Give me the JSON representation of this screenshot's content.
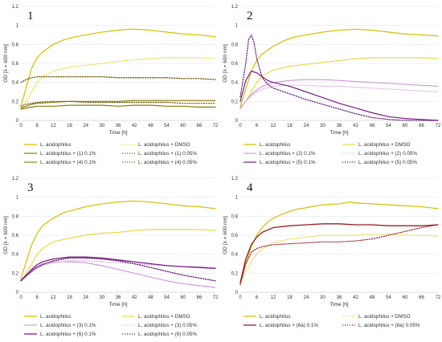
{
  "colors": {
    "gold": "#d8c20b",
    "gold_light": "#e8d94a",
    "olive": "#8a7a05",
    "olive_dark": "#6f5a08",
    "purple": "#7a1c86",
    "purple_dark": "#5b1670",
    "lilac": "#c989d6",
    "lilac_light": "#dcb0e3",
    "crimson": "#9b1c24",
    "pink_light": "#e0aeb4",
    "grid": "#e6e6e6",
    "axis": "#bbbbbb"
  },
  "chart_data": [
    {
      "type": "line",
      "panel_label": "1",
      "xlabel": "Time [h]",
      "ylabel": "OD [λ = 600 nm]",
      "xlim": [
        0,
        72
      ],
      "ylim": [
        0,
        1.2
      ],
      "xticks": [
        "0",
        "6",
        "12",
        "18",
        "24",
        "30",
        "36",
        "42",
        "48",
        "54",
        "60",
        "66",
        "72"
      ],
      "yticks": [
        "0",
        "0.2",
        "0.4",
        "0.6",
        "0.8",
        "1",
        "1.2"
      ],
      "grid": "horizontal",
      "legend_position": "bottom",
      "series": [
        {
          "name": "L. acidophilus",
          "color": "gold",
          "style": "solid",
          "width": 1.3,
          "x": [
            0,
            2,
            4,
            6,
            8,
            10,
            12,
            16,
            20,
            24,
            30,
            36,
            40,
            42,
            48,
            54,
            60,
            66,
            72
          ],
          "y": [
            0.15,
            0.35,
            0.55,
            0.66,
            0.72,
            0.76,
            0.8,
            0.85,
            0.88,
            0.9,
            0.93,
            0.95,
            0.96,
            0.96,
            0.95,
            0.93,
            0.91,
            0.9,
            0.88
          ]
        },
        {
          "name": "L. acidophilus + DMSO",
          "color": "gold_light",
          "style": "dotted",
          "width": 1.2,
          "x": [
            0,
            2,
            4,
            6,
            8,
            12,
            18,
            24,
            30,
            36,
            42,
            48,
            54,
            60,
            66,
            72
          ],
          "y": [
            0.12,
            0.2,
            0.3,
            0.4,
            0.46,
            0.52,
            0.56,
            0.58,
            0.6,
            0.62,
            0.64,
            0.65,
            0.66,
            0.66,
            0.66,
            0.65
          ]
        },
        {
          "name": "L. acidophilus + (1) 0.1%",
          "color": "olive",
          "style": "solid",
          "width": 1.2,
          "x": [
            0,
            2,
            4,
            6,
            12,
            18,
            24,
            30,
            36,
            42,
            48,
            54,
            60,
            66,
            72
          ],
          "y": [
            0.12,
            0.13,
            0.14,
            0.15,
            0.15,
            0.16,
            0.16,
            0.16,
            0.15,
            0.16,
            0.16,
            0.15,
            0.15,
            0.14,
            0.14
          ]
        },
        {
          "name": "L. acidophilus + (1) 0.05%",
          "color": "olive_dark",
          "style": "dotted",
          "width": 1.3,
          "x": [
            0,
            2,
            4,
            6,
            12,
            18,
            24,
            30,
            36,
            42,
            48,
            54,
            60,
            66,
            72
          ],
          "y": [
            0.4,
            0.43,
            0.45,
            0.46,
            0.46,
            0.46,
            0.46,
            0.46,
            0.45,
            0.45,
            0.45,
            0.45,
            0.44,
            0.44,
            0.43
          ]
        },
        {
          "name": "L. acidophilus + (4) 0.1%",
          "color": "olive",
          "style": "solid",
          "width": 1.1,
          "x": [
            0,
            2,
            4,
            6,
            12,
            18,
            24,
            30,
            36,
            42,
            48,
            54,
            60,
            66,
            72
          ],
          "y": [
            0.13,
            0.15,
            0.17,
            0.18,
            0.19,
            0.2,
            0.2,
            0.2,
            0.2,
            0.21,
            0.21,
            0.21,
            0.21,
            0.21,
            0.21
          ]
        },
        {
          "name": "L. acidophilus + (4) 0.05%",
          "color": "olive_dark",
          "style": "dotted",
          "width": 1.2,
          "x": [
            0,
            2,
            4,
            6,
            12,
            18,
            24,
            30,
            36,
            42,
            48,
            54,
            60,
            66,
            72
          ],
          "y": [
            0.15,
            0.17,
            0.18,
            0.19,
            0.2,
            0.2,
            0.19,
            0.19,
            0.19,
            0.19,
            0.19,
            0.19,
            0.18,
            0.18,
            0.18
          ]
        }
      ]
    },
    {
      "type": "line",
      "panel_label": "2",
      "xlabel": "Time [h]",
      "ylabel": "OD [λ = 600 nm]",
      "xlim": [
        0,
        72
      ],
      "ylim": [
        0,
        1.2
      ],
      "xticks": [
        "0",
        "6",
        "12",
        "18",
        "24",
        "30",
        "36",
        "42",
        "48",
        "54",
        "60",
        "66",
        "72"
      ],
      "yticks": [
        "0",
        "0.2",
        "0.4",
        "0.6",
        "0.8",
        "1",
        "1.2"
      ],
      "grid": "horizontal",
      "legend_position": "bottom",
      "series": [
        {
          "name": "L. acidophilus",
          "color": "gold",
          "style": "solid",
          "width": 1.3,
          "x": [
            0,
            2,
            4,
            6,
            8,
            10,
            12,
            16,
            20,
            24,
            30,
            36,
            42,
            48,
            54,
            60,
            66,
            72
          ],
          "y": [
            0.15,
            0.33,
            0.52,
            0.63,
            0.7,
            0.74,
            0.78,
            0.84,
            0.88,
            0.9,
            0.93,
            0.95,
            0.96,
            0.95,
            0.93,
            0.91,
            0.9,
            0.89
          ]
        },
        {
          "name": "L. acidophilus + DMSO",
          "color": "gold_light",
          "style": "solid",
          "width": 1.2,
          "x": [
            0,
            2,
            4,
            6,
            8,
            12,
            18,
            24,
            30,
            36,
            42,
            48,
            54,
            60,
            66,
            72
          ],
          "y": [
            0.12,
            0.2,
            0.3,
            0.4,
            0.47,
            0.53,
            0.57,
            0.59,
            0.61,
            0.63,
            0.65,
            0.66,
            0.66,
            0.66,
            0.66,
            0.65
          ]
        },
        {
          "name": "L. acidophilus + (2) 0.1%",
          "color": "lilac",
          "style": "solid",
          "width": 1.0,
          "x": [
            0,
            2,
            4,
            6,
            8,
            12,
            18,
            24,
            30,
            36,
            42,
            48,
            54,
            60,
            66,
            72
          ],
          "y": [
            0.13,
            0.2,
            0.27,
            0.32,
            0.36,
            0.4,
            0.42,
            0.43,
            0.43,
            0.42,
            0.41,
            0.4,
            0.39,
            0.38,
            0.37,
            0.36
          ]
        },
        {
          "name": "L. acidophilus + (2) 0.05%",
          "color": "lilac_light",
          "style": "dotted",
          "width": 1.2,
          "x": [
            0,
            2,
            4,
            6,
            8,
            12,
            18,
            24,
            30,
            36,
            42,
            48,
            54,
            60,
            66,
            72
          ],
          "y": [
            0.14,
            0.2,
            0.26,
            0.3,
            0.33,
            0.36,
            0.37,
            0.37,
            0.36,
            0.36,
            0.35,
            0.34,
            0.33,
            0.32,
            0.31,
            0.3
          ]
        },
        {
          "name": "L. acidophilus + (5) 0.1%",
          "color": "purple",
          "style": "solid",
          "width": 1.2,
          "x": [
            0,
            2,
            4,
            6,
            8,
            10,
            12,
            18,
            24,
            30,
            36,
            42,
            48,
            54,
            60,
            66,
            72
          ],
          "y": [
            0.2,
            0.42,
            0.52,
            0.5,
            0.46,
            0.42,
            0.4,
            0.36,
            0.3,
            0.24,
            0.18,
            0.13,
            0.08,
            0.04,
            0.02,
            0.01,
            0.0
          ]
        },
        {
          "name": "L. acidophilus + (5) 0.05%",
          "color": "purple_dark",
          "style": "dotted",
          "width": 1.2,
          "x": [
            0,
            2,
            3,
            4,
            5,
            6,
            8,
            10,
            12,
            18,
            24,
            30,
            36,
            42,
            48,
            54,
            60,
            66,
            72
          ],
          "y": [
            0.25,
            0.6,
            0.85,
            0.9,
            0.82,
            0.65,
            0.45,
            0.38,
            0.34,
            0.28,
            0.22,
            0.17,
            0.12,
            0.07,
            0.03,
            0.01,
            0.0,
            0.0,
            0.0
          ]
        }
      ]
    },
    {
      "type": "line",
      "panel_label": "3",
      "xlabel": "Time [h]",
      "ylabel": "OD [λ = 600 nm]",
      "xlim": [
        0,
        72
      ],
      "ylim": [
        0,
        1.2
      ],
      "xticks": [
        "0",
        "6",
        "12",
        "18",
        "24",
        "30",
        "36",
        "42",
        "48",
        "54",
        "60",
        "66",
        "72"
      ],
      "yticks": [
        "0",
        "0.2",
        "0.4",
        "0.6",
        "0.8",
        "1",
        "1.2"
      ],
      "grid": "horizontal",
      "legend_position": "bottom",
      "series": [
        {
          "name": "L. acidophilus",
          "color": "gold",
          "style": "solid",
          "width": 1.3,
          "x": [
            0,
            2,
            4,
            6,
            8,
            10,
            12,
            16,
            20,
            24,
            30,
            36,
            42,
            48,
            54,
            60,
            66,
            72
          ],
          "y": [
            0.15,
            0.32,
            0.5,
            0.62,
            0.7,
            0.74,
            0.78,
            0.84,
            0.87,
            0.9,
            0.93,
            0.95,
            0.96,
            0.95,
            0.93,
            0.91,
            0.9,
            0.88
          ]
        },
        {
          "name": "L. acidophilus + DMSO",
          "color": "gold_light",
          "style": "solid",
          "width": 1.2,
          "x": [
            0,
            2,
            4,
            6,
            8,
            12,
            18,
            24,
            30,
            36,
            42,
            48,
            54,
            60,
            66,
            72
          ],
          "y": [
            0.12,
            0.2,
            0.3,
            0.4,
            0.46,
            0.53,
            0.57,
            0.6,
            0.62,
            0.63,
            0.65,
            0.66,
            0.66,
            0.66,
            0.66,
            0.65
          ]
        },
        {
          "name": "L. acidophilus + (3) 0.1%",
          "color": "lilac",
          "style": "solid",
          "width": 1.0,
          "x": [
            0,
            2,
            4,
            6,
            8,
            12,
            18,
            24,
            30,
            36,
            42,
            48,
            54,
            60,
            66,
            72
          ],
          "y": [
            0.13,
            0.18,
            0.23,
            0.27,
            0.3,
            0.32,
            0.32,
            0.31,
            0.28,
            0.24,
            0.2,
            0.16,
            0.12,
            0.09,
            0.07,
            0.05
          ]
        },
        {
          "name": "L. acidophilus + (3) 0.05%",
          "color": "lilac_light",
          "style": "dotted",
          "width": 1.2,
          "x": [
            0,
            2,
            4,
            6,
            8,
            12,
            18,
            24,
            30,
            36,
            42,
            48,
            54,
            60,
            66,
            72
          ],
          "y": [
            0.14,
            0.18,
            0.22,
            0.26,
            0.28,
            0.31,
            0.33,
            0.33,
            0.32,
            0.31,
            0.3,
            0.29,
            0.28,
            0.27,
            0.27,
            0.26
          ]
        },
        {
          "name": "L. acidophilus + (6) 0.1%",
          "color": "purple",
          "style": "solid",
          "width": 1.3,
          "x": [
            0,
            2,
            4,
            6,
            8,
            12,
            18,
            24,
            30,
            36,
            42,
            48,
            54,
            60,
            66,
            72
          ],
          "y": [
            0.12,
            0.18,
            0.24,
            0.29,
            0.32,
            0.35,
            0.37,
            0.37,
            0.36,
            0.34,
            0.32,
            0.3,
            0.28,
            0.27,
            0.26,
            0.25
          ]
        },
        {
          "name": "L. acidophilus + (6) 0.05%",
          "color": "purple_dark",
          "style": "dotted",
          "width": 1.3,
          "x": [
            0,
            2,
            4,
            6,
            8,
            12,
            18,
            24,
            30,
            36,
            42,
            48,
            54,
            60,
            66,
            72
          ],
          "y": [
            0.12,
            0.17,
            0.22,
            0.26,
            0.29,
            0.33,
            0.36,
            0.36,
            0.35,
            0.33,
            0.3,
            0.26,
            0.22,
            0.18,
            0.15,
            0.12
          ]
        }
      ]
    },
    {
      "type": "line",
      "panel_label": "4",
      "xlabel": "Time [h]",
      "ylabel": "OD [λ = 600 nm]",
      "xlim": [
        0,
        72
      ],
      "ylim": [
        0,
        1.2
      ],
      "xticks": [
        "0",
        "6",
        "12",
        "18",
        "24",
        "30",
        "36",
        "42",
        "48",
        "54",
        "60",
        "66",
        "72"
      ],
      "yticks": [
        "0",
        "0.2",
        "0.4",
        "0.6",
        "0.8",
        "1",
        "1.2"
      ],
      "grid": "horizontal",
      "legend_position": "bottom",
      "series": [
        {
          "name": "L. acidophilus",
          "color": "gold",
          "style": "solid",
          "width": 1.3,
          "x": [
            0,
            2,
            4,
            6,
            8,
            10,
            12,
            16,
            20,
            24,
            30,
            36,
            40,
            42,
            48,
            54,
            60,
            66,
            72
          ],
          "y": [
            0.1,
            0.3,
            0.48,
            0.6,
            0.68,
            0.74,
            0.78,
            0.83,
            0.87,
            0.89,
            0.92,
            0.93,
            0.95,
            0.94,
            0.93,
            0.92,
            0.91,
            0.9,
            0.88
          ]
        },
        {
          "name": "L. acidophilus + DMSO",
          "color": "gold_light",
          "style": "dotted",
          "width": 1.2,
          "x": [
            0,
            2,
            4,
            6,
            8,
            12,
            18,
            24,
            30,
            36,
            42,
            48,
            54,
            60,
            66,
            72
          ],
          "y": [
            0.1,
            0.22,
            0.32,
            0.4,
            0.46,
            0.52,
            0.56,
            0.58,
            0.6,
            0.6,
            0.6,
            0.61,
            0.61,
            0.6,
            0.6,
            0.59
          ]
        },
        {
          "name": "L. acidophilus + (6a) 0.1%",
          "color": "crimson",
          "style": "solid",
          "width": 1.3,
          "x": [
            0,
            2,
            4,
            6,
            8,
            12,
            18,
            24,
            30,
            36,
            42,
            48,
            54,
            60,
            66,
            72
          ],
          "y": [
            0.1,
            0.35,
            0.5,
            0.58,
            0.63,
            0.68,
            0.7,
            0.71,
            0.72,
            0.72,
            0.71,
            0.71,
            0.7,
            0.7,
            0.7,
            0.71
          ]
        },
        {
          "name": "L. acidophilus + (6a) 0.05%",
          "color": "crimson",
          "style": "dotted",
          "width": 1.2,
          "x": [
            0,
            2,
            4,
            6,
            8,
            12,
            18,
            24,
            30,
            36,
            42,
            48,
            54,
            60,
            66,
            72
          ],
          "y": [
            0.08,
            0.3,
            0.42,
            0.46,
            0.48,
            0.5,
            0.51,
            0.52,
            0.53,
            0.53,
            0.54,
            0.56,
            0.6,
            0.64,
            0.68,
            0.71
          ]
        }
      ]
    }
  ]
}
